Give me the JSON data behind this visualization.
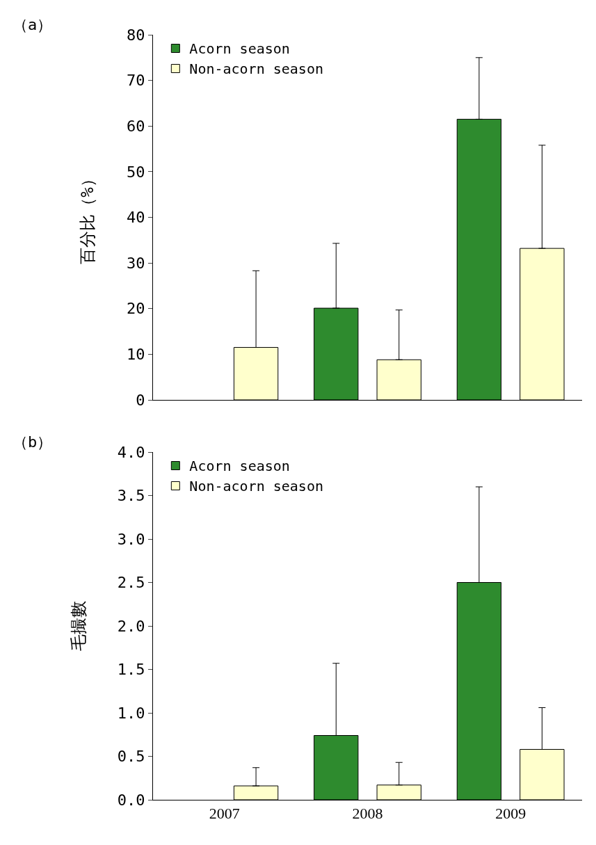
{
  "chart_data": [
    {
      "type": "bar",
      "title": "（a）",
      "ylabel": "百分比（%）",
      "categories": [
        "2007",
        "2008",
        "2009"
      ],
      "tick_labels": "y",
      "legend": "top left",
      "grid": false,
      "series": [
        {
          "name": "Acorn season",
          "color": "#2e8b2e",
          "values": [
            null,
            20.1,
            61.5
          ],
          "errors": [
            null,
            [
              20.1,
              34.3
            ],
            [
              61.5,
              75
            ]
          ]
        },
        {
          "name": "Non-acorn season",
          "color": "#ffffcc",
          "values": [
            11.5,
            8.8,
            33.2
          ],
          "errors": [
            [
              11.5,
              28.3
            ],
            [
              8.8,
              19.7
            ],
            [
              33.2,
              55.8
            ]
          ]
        }
      ],
      "ylim": [
        0,
        80
      ],
      "yticks": [
        0,
        10,
        20,
        30,
        40,
        50,
        60,
        70,
        80
      ]
    },
    {
      "type": "bar",
      "title": "（b）",
      "ylabel": "毛撮數",
      "categories": [
        "2007",
        "2008",
        "2009"
      ],
      "legend": "top left",
      "grid": false,
      "series": [
        {
          "name": "Acorn season",
          "color": "#2e8b2e",
          "values": [
            null,
            0.74,
            2.5
          ],
          "errors": [
            null,
            [
              0.74,
              1.57
            ],
            [
              2.5,
              3.6
            ]
          ]
        },
        {
          "name": "Non-acorn season",
          "color": "#ffffcc",
          "values": [
            0.16,
            0.17,
            0.58
          ],
          "errors": [
            [
              0.16,
              0.37
            ],
            [
              0.17,
              0.43
            ],
            [
              0.58,
              1.06
            ]
          ]
        }
      ],
      "ylim": [
        0,
        4
      ],
      "yticks": [
        {
          "value": 0,
          "label": "0.0"
        },
        {
          "value": 0.5,
          "label": "0.5"
        },
        {
          "value": 1,
          "label": "1.0"
        },
        {
          "value": 1.5,
          "label": "1.5"
        },
        {
          "value": 2,
          "label": "2.0"
        },
        {
          "value": 2.5,
          "label": "2.5"
        },
        {
          "value": 3,
          "label": "3.0"
        },
        {
          "value": 3.5,
          "label": "3.5"
        },
        {
          "value": 4,
          "label": "4.0"
        }
      ]
    }
  ]
}
